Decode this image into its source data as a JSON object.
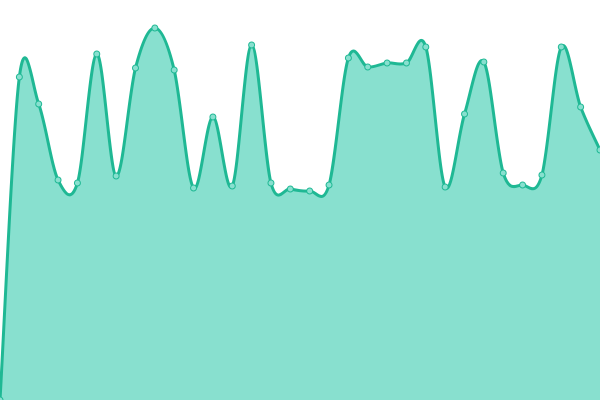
{
  "chart_data": {
    "type": "area",
    "values": [
      0,
      80.75,
      74,
      55,
      54.25,
      86.5,
      56,
      83,
      93,
      82.5,
      53,
      70.75,
      53.5,
      88.75,
      54.25,
      52.75,
      52.25,
      53.75,
      85.5,
      83.25,
      84.25,
      84.25,
      88.25,
      53.25,
      71.5,
      84.5,
      56.75,
      53.75,
      56.25,
      88.25,
      73.25,
      62.5
    ],
    "ylim": [
      0,
      100
    ],
    "color": "#1fb894",
    "fill": "#88e0cf",
    "markers": true
  }
}
